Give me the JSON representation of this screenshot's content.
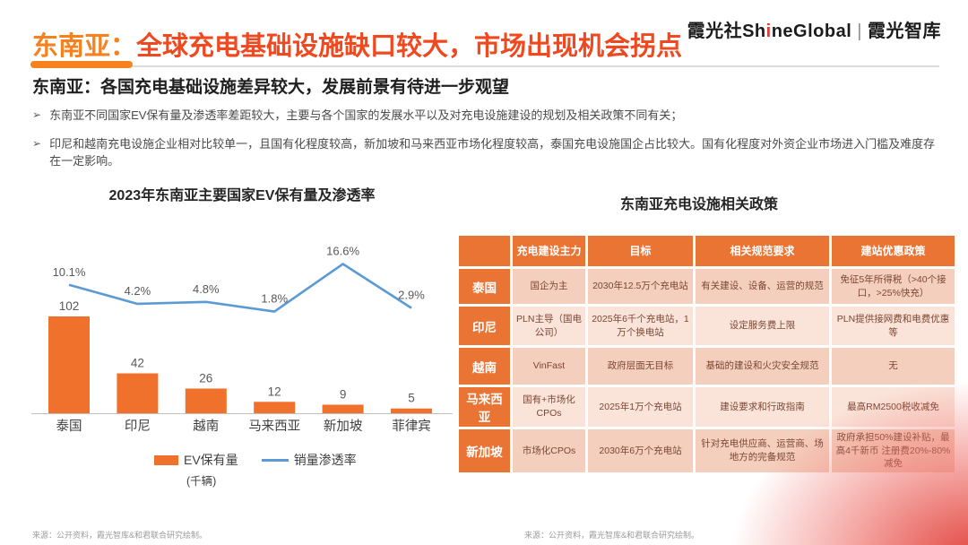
{
  "header": {
    "title_prefix": "东南亚：",
    "title_rest": "全球充电基础设施缺口较大，市场出现机会拐点"
  },
  "logo": {
    "brand_cn": "霞光社",
    "brand_en_pre": "Sh",
    "brand_en_i": "i",
    "brand_en_post": "neGlobal",
    "divider": "|",
    "think_tank": "霞光智库"
  },
  "subtitle": "东南亚：各国充电基础设施差异较大，发展前景有待进一步观望",
  "bullets": {
    "marker": "➢",
    "items": [
      "东南亚不同国家EV保有量及渗透率差距较大，主要与各个国家的发展水平以及对充电设施建设的规划及相关政策不同有关；",
      "印尼和越南充电设施企业相对比较单一，且国有化程度较高，新加坡和马来西亚市场化程度较高，泰国充电设施国企占比较大。国有化程度对外资企业市场进入门槛及难度存在一定影响。"
    ]
  },
  "chart_data": {
    "type": "bar",
    "title": "2023年东南亚主要国家EV保有量及渗透率",
    "categories": [
      "泰国",
      "印尼",
      "越南",
      "马来西亚",
      "新加坡",
      "菲律宾"
    ],
    "series": [
      {
        "name": "EV保有量",
        "type": "bar",
        "unit": "千辆",
        "values": [
          102,
          42,
          26,
          12,
          9,
          5
        ]
      },
      {
        "name": "销量渗透率",
        "type": "line",
        "unit": "%",
        "values": [
          10.1,
          4.2,
          4.8,
          1.8,
          16.6,
          2.9
        ]
      }
    ],
    "unit_note": "(千辆)",
    "xlabel": "",
    "ylabel": "",
    "legend_position": "bottom",
    "grid": false
  },
  "policy_table": {
    "title": "东南亚充电设施相关政策",
    "headers": [
      "",
      "充电建设主力",
      "目标",
      "相关规范要求",
      "建站优惠政策"
    ],
    "rows": [
      {
        "country": "泰国",
        "cells": [
          "国企为主",
          "2030年12.5万个充电站",
          "有关建设、设备、运营的规范",
          "免征5年所得税（>40个接口，>25%快充）"
        ]
      },
      {
        "country": "印尼",
        "cells": [
          "PLN主导（国电公司）",
          "2025年6千个充电站，1万个换电站",
          "设定服务费上限",
          "PLN提供接网费和电费优惠等"
        ]
      },
      {
        "country": "越南",
        "cells": [
          "VinFast",
          "政府层面无目标",
          "基础的建设和火灾安全规范",
          "无"
        ]
      },
      {
        "country": "马来西亚",
        "cells": [
          "国有+市场化CPOs",
          "2025年1万个充电站",
          "建设要求和行政指南",
          "最高RM2500税收减免"
        ]
      },
      {
        "country": "新加坡",
        "cells": [
          "市场化CPOs",
          "2030年6万个充电站",
          "针对充电供应商、运营商、场地方的完备规范",
          "政府承担50%建设补贴，最高4千新币 注册费20%-80%减免"
        ]
      }
    ]
  },
  "footnotes": {
    "left": "来源：公开资料，霞光智库&和君联合研究绘制。",
    "right": "来源：公开资料，霞光智库&和君联合研究绘制。"
  },
  "colors": {
    "title_orange": "#F5821F",
    "title_red": "#F0481F",
    "bar_orange": "#F0712B",
    "line_blue": "#5B9BD5",
    "table_header_orange": "#E97434",
    "row_dark": "#F4CFBD",
    "row_light": "#FAE3D9",
    "cell_text": "#7C4632",
    "corner_red": "#E03832"
  }
}
